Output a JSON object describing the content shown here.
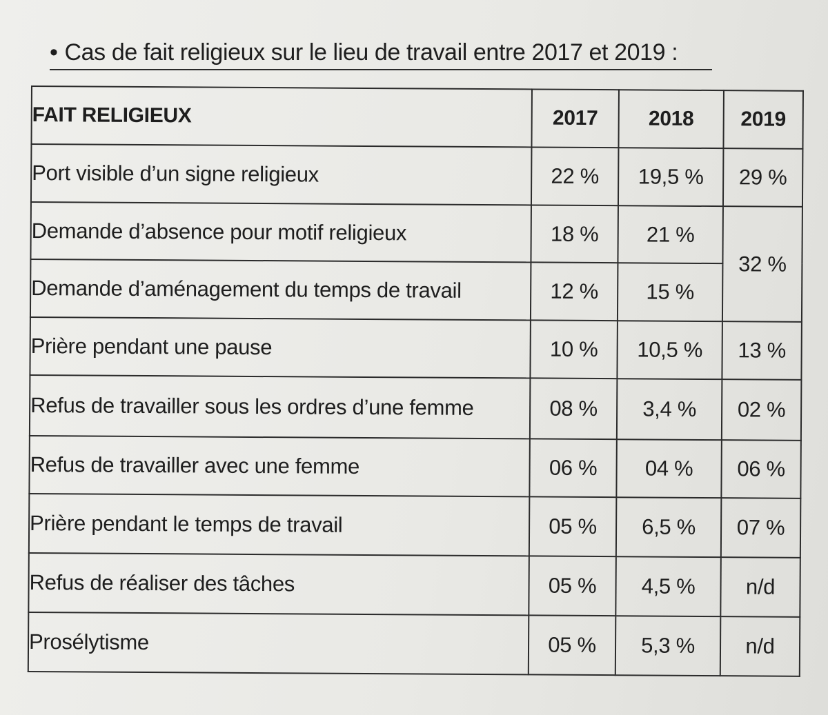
{
  "title": "Cas de fait religieux sur le lieu de travail entre 2017 et 2019 :",
  "bullet": "•",
  "table": {
    "headers": [
      "FAIT RELIGIEUX",
      "2017",
      "2018",
      "2019"
    ],
    "rows": [
      {
        "label": "Port visible d’un signe religieux",
        "y2017": "22 %",
        "y2018": "19,5 %",
        "y2019": "29 %"
      },
      {
        "label": "Demande d’absence pour motif religieux",
        "y2017": "18 %",
        "y2018": "21 %",
        "y2019": "32 %"
      },
      {
        "label": "Demande d’aménagement du temps de travail",
        "y2017": "12 %",
        "y2018": "15 %"
      },
      {
        "label": "Prière pendant une pause",
        "y2017": "10 %",
        "y2018": "10,5 %",
        "y2019": "13 %"
      },
      {
        "label": "Refus de travailler sous les ordres d’une femme",
        "y2017": "08 %",
        "y2018": "3,4 %",
        "y2019": "02 %"
      },
      {
        "label": "Refus de travailler avec une femme",
        "y2017": "06 %",
        "y2018": "04 %",
        "y2019": "06 %"
      },
      {
        "label": "Prière pendant le temps de travail",
        "y2017": "05 %",
        "y2018": "6,5 %",
        "y2019": "07 %"
      },
      {
        "label": "Refus de réaliser des tâches",
        "y2017": "05 %",
        "y2018": "4,5 %",
        "y2019": "n/d"
      },
      {
        "label": "Prosélytisme",
        "y2017": "05 %",
        "y2018": "5,3 %",
        "y2019": "n/d"
      }
    ]
  }
}
